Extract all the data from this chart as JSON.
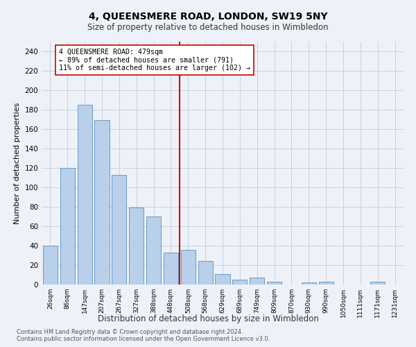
{
  "title": "4, QUEENSMERE ROAD, LONDON, SW19 5NY",
  "subtitle": "Size of property relative to detached houses in Wimbledon",
  "xlabel": "Distribution of detached houses by size in Wimbledon",
  "ylabel": "Number of detached properties",
  "categories": [
    "26sqm",
    "86sqm",
    "147sqm",
    "207sqm",
    "267sqm",
    "327sqm",
    "388sqm",
    "448sqm",
    "508sqm",
    "568sqm",
    "629sqm",
    "689sqm",
    "749sqm",
    "809sqm",
    "870sqm",
    "930sqm",
    "990sqm",
    "1050sqm",
    "1111sqm",
    "1171sqm",
    "1231sqm"
  ],
  "values": [
    40,
    120,
    185,
    169,
    113,
    79,
    70,
    33,
    36,
    24,
    11,
    5,
    7,
    3,
    0,
    2,
    3,
    0,
    0,
    3,
    0
  ],
  "bar_color": "#b8d0ea",
  "bar_edge_color": "#6699cc",
  "property_line_color": "#cc0000",
  "annotation_text": "4 QUEENSMERE ROAD: 479sqm\n← 89% of detached houses are smaller (791)\n11% of semi-detached houses are larger (102) →",
  "annotation_box_color": "#ffffff",
  "annotation_box_edge": "#cc0000",
  "ylim": [
    0,
    250
  ],
  "yticks": [
    0,
    20,
    40,
    60,
    80,
    100,
    120,
    140,
    160,
    180,
    200,
    220,
    240
  ],
  "footer1": "Contains HM Land Registry data © Crown copyright and database right 2024.",
  "footer2": "Contains public sector information licensed under the Open Government Licence v3.0.",
  "background_color": "#eef2f8",
  "plot_bg_color": "#eef2f8",
  "grid_color": "#c0cce0"
}
